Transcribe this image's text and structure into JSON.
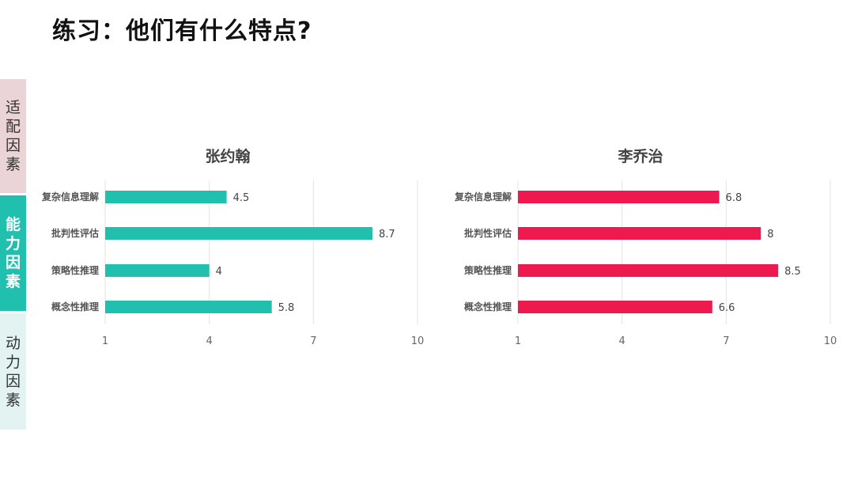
{
  "page": {
    "title": "练习：他们有什么特点?"
  },
  "side_tabs": [
    {
      "label": "适配因素"
    },
    {
      "label": "能力因素"
    },
    {
      "label": "动力因素"
    }
  ],
  "colors": {
    "series_1": "#20bfae",
    "series_2": "#ee1a4f",
    "active_tab": "#20bfae"
  },
  "chart_data": [
    {
      "type": "bar",
      "orientation": "horizontal",
      "title": "张约翰",
      "categories": [
        "复杂信息理解",
        "批判性评估",
        "策略性推理",
        "概念性推理"
      ],
      "values": [
        4.5,
        8.7,
        4,
        5.8
      ],
      "xlim": [
        1,
        10
      ],
      "xticks": [
        1,
        4,
        7,
        10
      ],
      "grid": "vertical",
      "color": "#20bfae"
    },
    {
      "type": "bar",
      "orientation": "horizontal",
      "title": "李乔治",
      "categories": [
        "复杂信息理解",
        "批判性评估",
        "策略性推理",
        "概念性推理"
      ],
      "values": [
        6.8,
        8,
        8.5,
        6.6
      ],
      "xlim": [
        1,
        10
      ],
      "xticks": [
        1,
        4,
        7,
        10
      ],
      "grid": "vertical",
      "color": "#ee1a4f"
    }
  ]
}
